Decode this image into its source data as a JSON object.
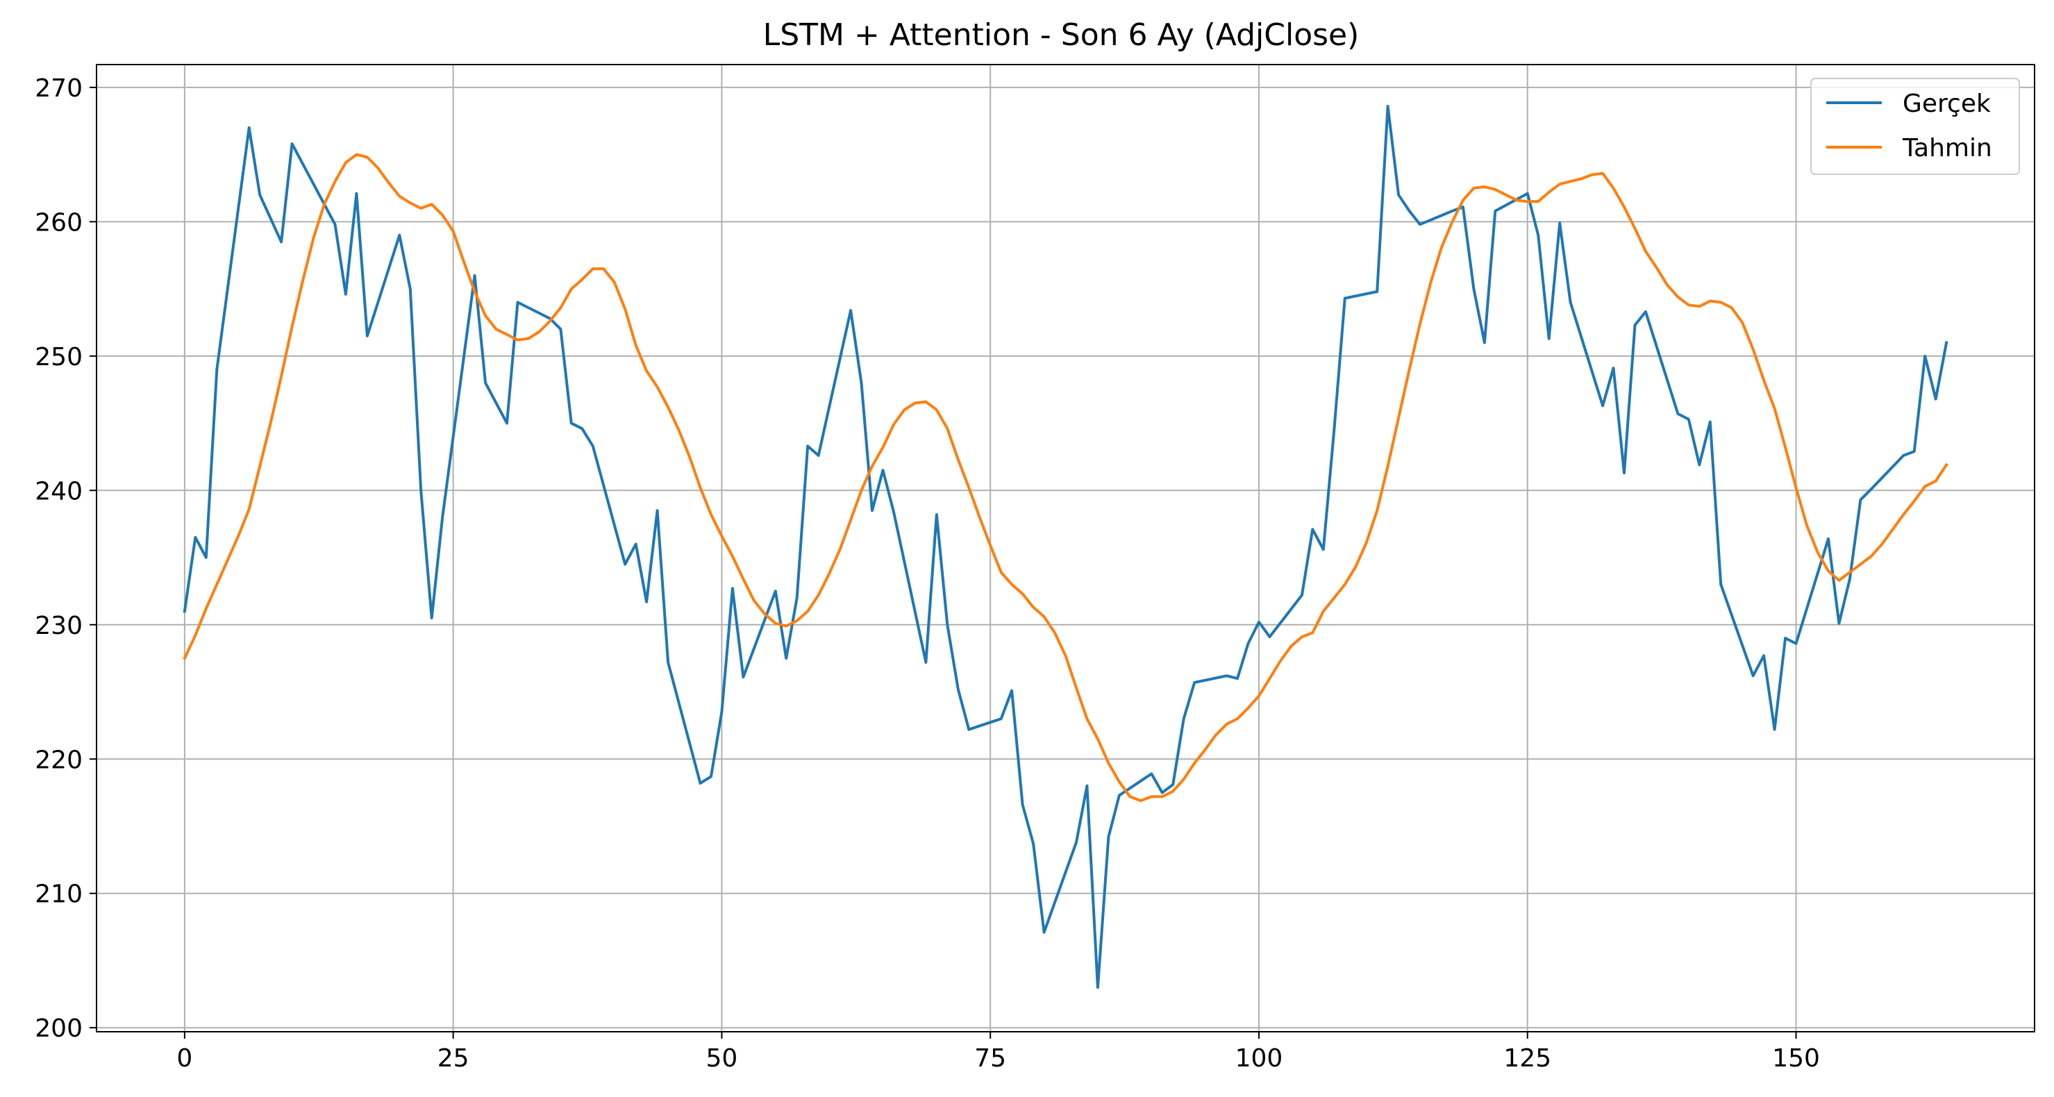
{
  "chart_data": {
    "type": "line",
    "title": "LSTM + Attention - Son 6 Ay (AdjClose)",
    "xlabel": "",
    "ylabel": "",
    "xlim": [
      -8.2,
      172.2
    ],
    "ylim": [
      199.7,
      271.7
    ],
    "grid": true,
    "legend_position": "top-right",
    "x_ticks": [
      0,
      25,
      50,
      75,
      100,
      125,
      150
    ],
    "y_ticks": [
      200,
      210,
      220,
      230,
      240,
      250,
      260,
      270
    ],
    "x_tick_labels": [
      "0",
      "25",
      "50",
      "75",
      "100",
      "125",
      "150"
    ],
    "y_tick_labels": [
      "200",
      "210",
      "220",
      "230",
      "240",
      "250",
      "260",
      "270"
    ],
    "series": [
      {
        "name": "Gerçek",
        "color": "#1f77b4",
        "x": [
          0,
          1,
          2,
          3,
          6,
          7,
          9,
          10,
          14,
          15,
          16,
          17,
          20,
          21,
          22,
          23,
          24,
          27,
          28,
          30,
          31,
          34,
          35,
          36,
          37,
          38,
          41,
          42,
          43,
          44,
          45,
          48,
          49,
          50,
          51,
          52,
          55,
          56,
          57,
          58,
          59,
          62,
          63,
          64,
          65,
          66,
          69,
          70,
          71,
          72,
          73,
          76,
          77,
          78,
          79,
          80,
          83,
          84,
          85,
          86,
          87,
          90,
          91,
          92,
          93,
          94,
          97,
          98,
          99,
          100,
          101,
          104,
          105,
          106,
          107,
          108,
          111,
          112,
          113,
          114,
          115,
          118,
          119,
          120,
          121,
          122,
          125,
          126,
          127,
          128,
          129,
          132,
          133,
          134,
          135,
          136,
          139,
          140,
          141,
          142,
          143,
          146,
          147,
          148,
          149,
          150,
          153,
          154,
          155,
          156,
          157,
          160,
          161,
          162,
          163,
          164
        ],
        "values": [
          231.0,
          236.5,
          235.0,
          249.0,
          267.0,
          262.0,
          258.5,
          265.8,
          259.8,
          254.6,
          262.1,
          251.5,
          259.0,
          255.0,
          240.0,
          230.5,
          238.0,
          256.0,
          248.0,
          245.0,
          254.0,
          252.8,
          252.0,
          245.0,
          244.6,
          243.3,
          234.5,
          236.0,
          231.7,
          238.5,
          227.2,
          218.2,
          218.7,
          223.5,
          232.7,
          226.1,
          232.5,
          227.5,
          232.0,
          243.3,
          242.6,
          253.4,
          248.0,
          238.5,
          241.5,
          238.4,
          227.2,
          238.2,
          230.0,
          225.2,
          222.2,
          223.0,
          225.1,
          216.6,
          213.7,
          207.1,
          213.8,
          218.0,
          203.0,
          214.2,
          217.3,
          218.9,
          217.5,
          218.1,
          223.0,
          225.7,
          226.2,
          226.0,
          228.6,
          230.2,
          229.1,
          232.2,
          237.1,
          235.6,
          244.5,
          254.3,
          254.8,
          268.6,
          262.0,
          260.8,
          259.8,
          260.8,
          261.1,
          255.0,
          251.0,
          260.8,
          262.1,
          259.0,
          251.3,
          259.9,
          254.0,
          246.3,
          249.1,
          241.3,
          252.3,
          253.3,
          245.7,
          245.3,
          241.9,
          245.1,
          233.0,
          226.2,
          227.7,
          222.2,
          229.0,
          228.6,
          236.4,
          230.1,
          233.4,
          239.3,
          240.1,
          242.6,
          242.9,
          250.0,
          246.8,
          251.0
        ]
      },
      {
        "name": "Tahmin",
        "color": "#ff7f0e",
        "x": [
          0,
          1,
          2,
          3,
          4,
          5,
          6,
          7,
          8,
          9,
          10,
          11,
          12,
          13,
          14,
          15,
          16,
          17,
          18,
          19,
          20,
          21,
          22,
          23,
          24,
          25,
          26,
          27,
          28,
          29,
          30,
          31,
          32,
          33,
          34,
          35,
          36,
          37,
          38,
          39,
          40,
          41,
          42,
          43,
          44,
          45,
          46,
          47,
          48,
          49,
          50,
          51,
          52,
          53,
          54,
          55,
          56,
          57,
          58,
          59,
          60,
          61,
          62,
          63,
          64,
          65,
          66,
          67,
          68,
          69,
          70,
          71,
          72,
          73,
          74,
          75,
          76,
          77,
          78,
          79,
          80,
          81,
          82,
          83,
          84,
          85,
          86,
          87,
          88,
          89,
          90,
          91,
          92,
          93,
          94,
          95,
          96,
          97,
          98,
          99,
          100,
          101,
          102,
          103,
          104,
          105,
          106,
          107,
          108,
          109,
          110,
          111,
          112,
          113,
          114,
          115,
          116,
          117,
          118,
          119,
          120,
          121,
          122,
          123,
          124,
          125,
          126,
          127,
          128,
          129,
          130,
          131,
          132,
          133,
          134,
          135,
          136,
          137,
          138,
          139,
          140,
          141,
          142,
          143,
          144,
          145,
          146,
          147,
          148,
          149,
          150,
          151,
          152,
          153,
          154,
          155,
          156,
          157,
          158,
          159,
          160,
          161,
          162,
          163,
          164
        ],
        "values": [
          227.5,
          229.2,
          231.2,
          233.0,
          234.8,
          236.6,
          238.6,
          241.8,
          245.0,
          248.5,
          252.2,
          255.6,
          258.8,
          261.3,
          263.0,
          264.4,
          265.0,
          264.8,
          264.0,
          262.9,
          261.9,
          261.4,
          261.0,
          261.3,
          260.5,
          259.3,
          257.0,
          254.8,
          253.0,
          252.0,
          251.6,
          251.2,
          251.3,
          251.8,
          252.6,
          253.6,
          255.0,
          255.7,
          256.5,
          256.5,
          255.5,
          253.5,
          250.8,
          248.9,
          247.7,
          246.2,
          244.5,
          242.5,
          240.2,
          238.2,
          236.6,
          235.1,
          233.4,
          231.8,
          230.8,
          230.1,
          229.9,
          230.3,
          231.0,
          232.2,
          233.8,
          235.6,
          237.8,
          240.0,
          241.8,
          243.2,
          244.9,
          246.0,
          246.5,
          246.6,
          246.0,
          244.6,
          242.3,
          240.2,
          238.0,
          235.9,
          233.9,
          233.0,
          232.3,
          231.3,
          230.6,
          229.4,
          227.7,
          225.3,
          223.0,
          221.5,
          219.7,
          218.3,
          217.2,
          216.9,
          217.2,
          217.2,
          217.6,
          218.5,
          219.7,
          220.7,
          221.8,
          222.6,
          223.0,
          223.8,
          224.7,
          226.0,
          227.3,
          228.4,
          229.1,
          229.4,
          231.0,
          232.0,
          233.0,
          234.3,
          236.1,
          238.5,
          241.8,
          245.4,
          249.0,
          252.4,
          255.5,
          258.1,
          260.0,
          261.6,
          262.5,
          262.6,
          262.4,
          262.0,
          261.6,
          261.5,
          261.5,
          262.2,
          262.8,
          263.0,
          263.2,
          263.5,
          263.6,
          262.5,
          261.1,
          259.5,
          257.8,
          256.6,
          255.3,
          254.4,
          253.8,
          253.7,
          254.1,
          254.0,
          253.6,
          252.5,
          250.5,
          248.2,
          246.1,
          243.2,
          240.2,
          237.4,
          235.4,
          234.0,
          233.3,
          233.9,
          234.5,
          235.1,
          236.0,
          237.1,
          238.2,
          239.2,
          240.3,
          240.7,
          241.9
        ]
      }
    ]
  }
}
